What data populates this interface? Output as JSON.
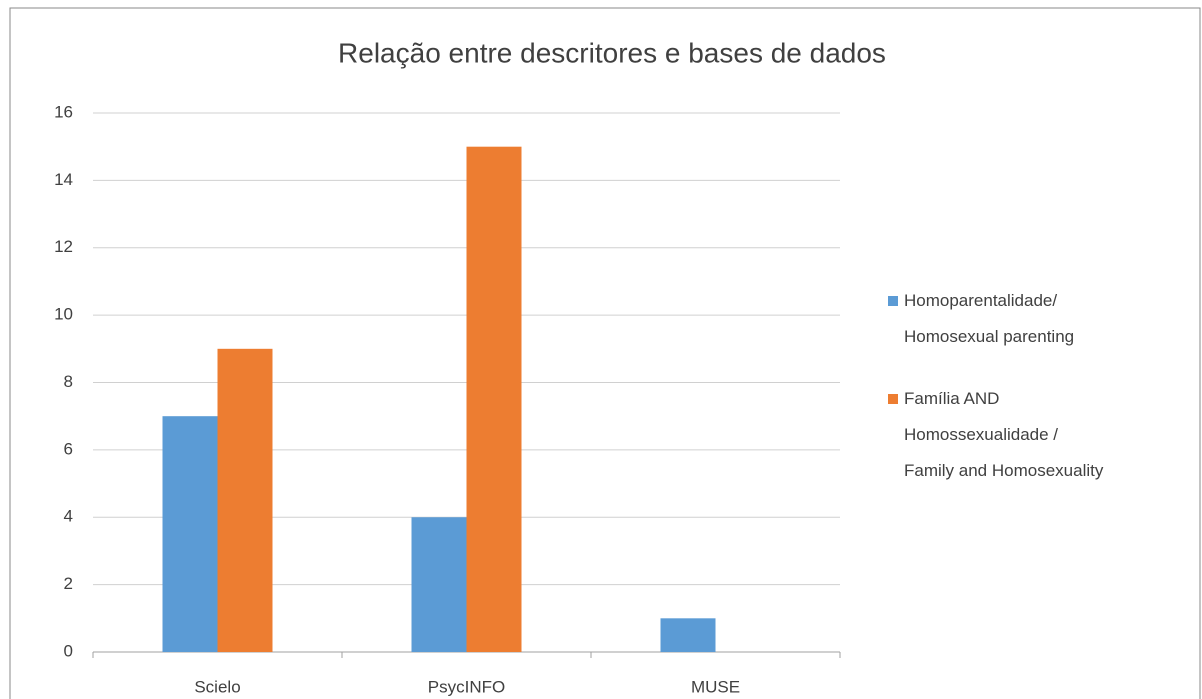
{
  "chart_data": {
    "type": "bar",
    "title": "Relação entre descritores e bases de dados",
    "categories": [
      "Scielo",
      "PsycINFO",
      "MUSE"
    ],
    "series": [
      {
        "name": "Homoparentalidade/\nHomosexual parenting",
        "color": "#5b9bd5",
        "values": [
          7,
          4,
          1
        ]
      },
      {
        "name": "Família AND\nHomossexualidade /\nFamily and Homosexuality",
        "color": "#ed7d31",
        "values": [
          9,
          15,
          0
        ]
      }
    ],
    "ylim": [
      0,
      16
    ],
    "yticks": [
      0,
      2,
      4,
      6,
      8,
      10,
      12,
      14,
      16
    ],
    "grid": true,
    "legend": "right"
  }
}
